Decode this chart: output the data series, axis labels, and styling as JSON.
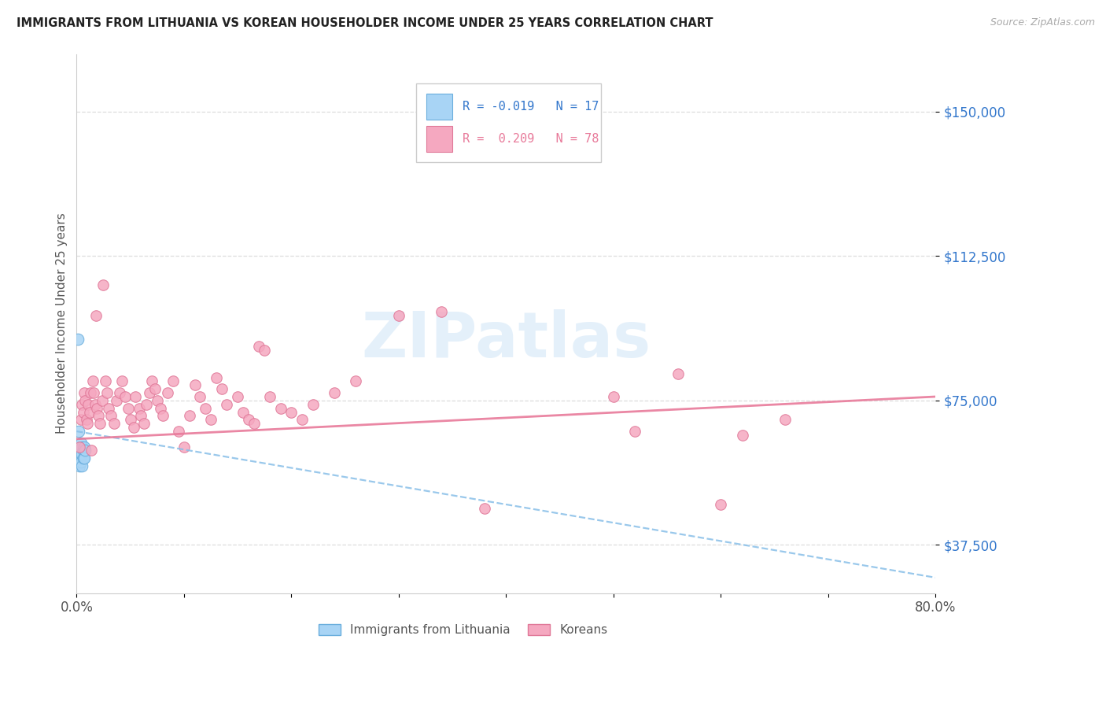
{
  "title": "IMMIGRANTS FROM LITHUANIA VS KOREAN HOUSEHOLDER INCOME UNDER 25 YEARS CORRELATION CHART",
  "source": "Source: ZipAtlas.com",
  "ylabel": "Householder Income Under 25 years",
  "xlim": [
    0.0,
    0.8
  ],
  "ylim": [
    25000,
    165000
  ],
  "yticks": [
    37500,
    75000,
    112500,
    150000
  ],
  "ytick_labels": [
    "$37,500",
    "$75,000",
    "$112,500",
    "$150,000"
  ],
  "color_lithuania": "#a8d4f5",
  "color_korean": "#f5a8c0",
  "trendline_lithuania_color": "#88bfe8",
  "trendline_korean_color": "#e87a9a",
  "watermark": "ZIPatlas",
  "background_color": "#ffffff",
  "grid_color": "#dddddd",
  "title_color": "#222222",
  "axis_label_color": "#555555",
  "ytick_label_color": "#3377cc",
  "source_color": "#aaaaaa",
  "lith_x": [
    0.001,
    0.002,
    0.002,
    0.003,
    0.003,
    0.003,
    0.004,
    0.004,
    0.004,
    0.005,
    0.005,
    0.005,
    0.006,
    0.006,
    0.007,
    0.007,
    0.008
  ],
  "lith_y": [
    91000,
    67000,
    63000,
    62000,
    60000,
    58000,
    64000,
    61000,
    59000,
    63000,
    61000,
    58000,
    62000,
    60000,
    63000,
    60000,
    62000
  ],
  "kor_x": [
    0.003,
    0.004,
    0.005,
    0.006,
    0.007,
    0.008,
    0.009,
    0.01,
    0.011,
    0.012,
    0.013,
    0.014,
    0.015,
    0.016,
    0.017,
    0.018,
    0.019,
    0.02,
    0.022,
    0.024,
    0.025,
    0.027,
    0.028,
    0.03,
    0.032,
    0.035,
    0.037,
    0.04,
    0.042,
    0.045,
    0.048,
    0.05,
    0.053,
    0.055,
    0.058,
    0.06,
    0.063,
    0.065,
    0.068,
    0.07,
    0.073,
    0.075,
    0.078,
    0.08,
    0.085,
    0.09,
    0.095,
    0.1,
    0.105,
    0.11,
    0.115,
    0.12,
    0.125,
    0.13,
    0.135,
    0.14,
    0.15,
    0.155,
    0.16,
    0.165,
    0.17,
    0.175,
    0.18,
    0.19,
    0.2,
    0.21,
    0.22,
    0.24,
    0.26,
    0.3,
    0.34,
    0.38,
    0.5,
    0.52,
    0.56,
    0.6,
    0.62,
    0.66
  ],
  "kor_y": [
    63000,
    70000,
    74000,
    72000,
    77000,
    75000,
    70000,
    69000,
    74000,
    72000,
    77000,
    62000,
    80000,
    77000,
    74000,
    97000,
    73000,
    71000,
    69000,
    75000,
    105000,
    80000,
    77000,
    73000,
    71000,
    69000,
    75000,
    77000,
    80000,
    76000,
    73000,
    70000,
    68000,
    76000,
    73000,
    71000,
    69000,
    74000,
    77000,
    80000,
    78000,
    75000,
    73000,
    71000,
    77000,
    80000,
    67000,
    63000,
    71000,
    79000,
    76000,
    73000,
    70000,
    81000,
    78000,
    74000,
    76000,
    72000,
    70000,
    69000,
    89000,
    88000,
    76000,
    73000,
    72000,
    70000,
    74000,
    77000,
    80000,
    97000,
    98000,
    47000,
    76000,
    67000,
    82000,
    48000,
    66000,
    70000
  ],
  "trendline_lith_x0": 0.0,
  "trendline_lith_x1": 0.8,
  "trendline_lith_y0": 67000,
  "trendline_lith_y1": 29000,
  "trendline_kor_x0": 0.0,
  "trendline_kor_x1": 0.8,
  "trendline_kor_y0": 65000,
  "trendline_kor_y1": 76000
}
